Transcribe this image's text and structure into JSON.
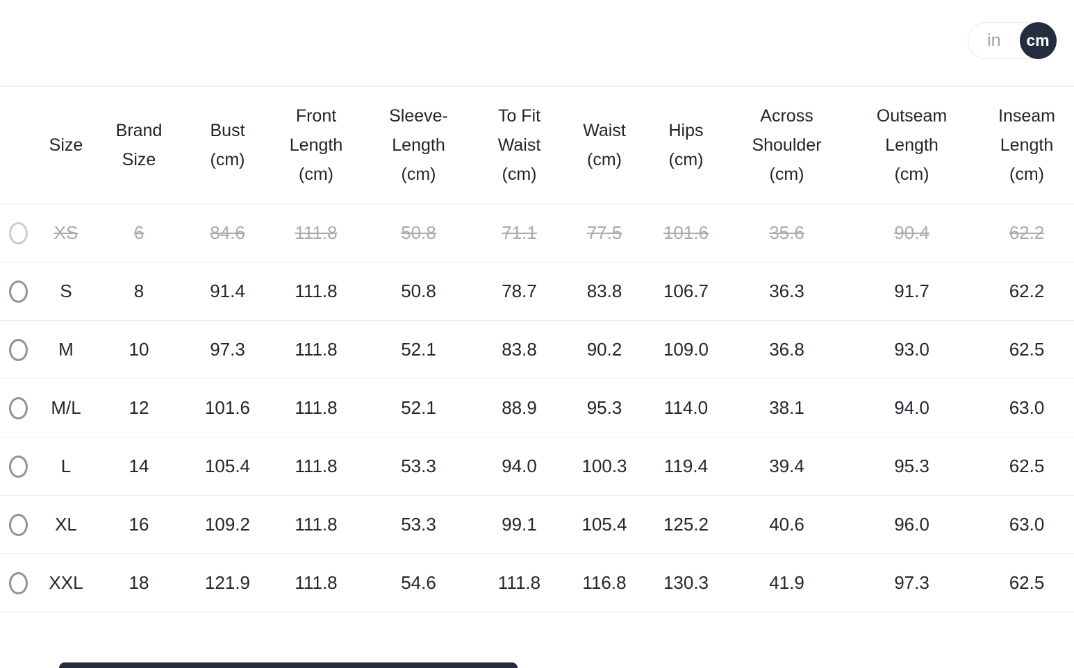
{
  "unit_toggle": {
    "inch_label": "in",
    "cm_label": "cm",
    "selected_unit": "cm"
  },
  "table": {
    "columns": [
      "Size",
      "Brand\nSize",
      "Bust\n(cm)",
      "Front\nLength\n(cm)",
      "Sleeve-\nLength\n(cm)",
      "To Fit\nWaist\n(cm)",
      "Waist\n(cm)",
      "Hips\n(cm)",
      "Across\nShoulder\n(cm)",
      "Outseam\nLength\n(cm)",
      "Inseam\nLength\n(cm)"
    ],
    "rows": [
      {
        "disabled": true,
        "selected": false,
        "cells": [
          "XS",
          "6",
          "84.6",
          "111.8",
          "50.8",
          "71.1",
          "77.5",
          "101.6",
          "35.6",
          "90.4",
          "62.2"
        ]
      },
      {
        "disabled": false,
        "selected": false,
        "cells": [
          "S",
          "8",
          "91.4",
          "111.8",
          "50.8",
          "78.7",
          "83.8",
          "106.7",
          "36.3",
          "91.7",
          "62.2"
        ]
      },
      {
        "disabled": false,
        "selected": false,
        "cells": [
          "M",
          "10",
          "97.3",
          "111.8",
          "52.1",
          "83.8",
          "90.2",
          "109.0",
          "36.8",
          "93.0",
          "62.5"
        ]
      },
      {
        "disabled": false,
        "selected": false,
        "cells": [
          "M/L",
          "12",
          "101.6",
          "111.8",
          "52.1",
          "88.9",
          "95.3",
          "114.0",
          "38.1",
          "94.0",
          "63.0"
        ]
      },
      {
        "disabled": false,
        "selected": false,
        "cells": [
          "L",
          "14",
          "105.4",
          "111.8",
          "53.3",
          "94.0",
          "100.3",
          "119.4",
          "39.4",
          "95.3",
          "62.5"
        ]
      },
      {
        "disabled": false,
        "selected": false,
        "cells": [
          "XL",
          "16",
          "109.2",
          "111.8",
          "53.3",
          "99.1",
          "105.4",
          "125.2",
          "40.6",
          "96.0",
          "63.0"
        ]
      },
      {
        "disabled": false,
        "selected": false,
        "cells": [
          "XXL",
          "18",
          "121.9",
          "111.8",
          "54.6",
          "111.8",
          "116.8",
          "130.3",
          "41.9",
          "97.3",
          "62.5"
        ]
      }
    ]
  },
  "colors": {
    "toggle_active_bg": "#242d40",
    "toggle_active_text": "#ffffff",
    "toggle_inactive_text": "#9aa2ab",
    "row_border": "#ececee",
    "disabled_text": "#a7abb1",
    "body_text": "#22262e"
  }
}
